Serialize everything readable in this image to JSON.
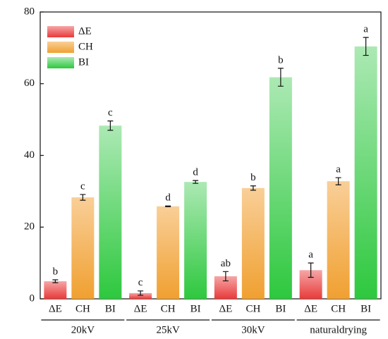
{
  "chart_data": {
    "type": "bar",
    "categories": [
      "20kV",
      "25kV",
      "30kV",
      "naturaldrying"
    ],
    "series": [
      {
        "name": "ΔE",
        "color": "#e83a3a",
        "color_light": "#f6a6a6",
        "values": [
          4.9,
          1.6,
          6.3,
          8.0
        ],
        "errors": [
          0.4,
          0.6,
          1.3,
          2.0
        ],
        "letters": [
          "b",
          "c",
          "ab",
          "a"
        ]
      },
      {
        "name": "CH",
        "color": "#f0a030",
        "color_light": "#f9cf98",
        "values": [
          28.3,
          25.8,
          30.9,
          32.8
        ],
        "errors": [
          0.8,
          0.1,
          0.6,
          1.0
        ],
        "letters": [
          "c",
          "d",
          "b",
          "a"
        ]
      },
      {
        "name": "BI",
        "color": "#2ec83e",
        "color_light": "#ace9b4",
        "values": [
          48.3,
          32.6,
          61.8,
          70.4
        ],
        "errors": [
          1.3,
          0.4,
          2.5,
          2.5
        ],
        "letters": [
          "c",
          "d",
          "b",
          "a"
        ]
      }
    ],
    "ylim": [
      0,
      80
    ],
    "yticks": [
      0,
      20,
      40,
      60,
      80
    ],
    "legend": "upper left"
  }
}
